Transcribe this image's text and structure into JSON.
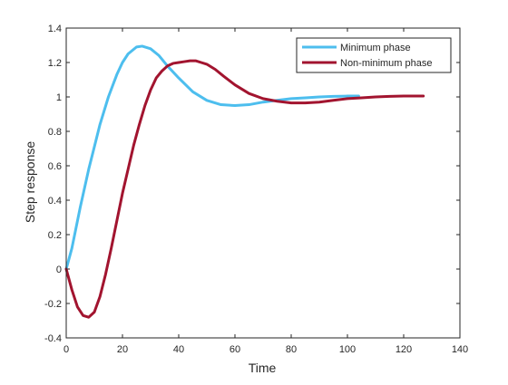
{
  "chart_data": {
    "type": "line",
    "title": "",
    "xlabel": "Time",
    "ylabel": "Step response",
    "xlim": [
      0,
      140
    ],
    "ylim": [
      -0.4,
      1.4
    ],
    "x_ticks": [
      0,
      20,
      40,
      60,
      80,
      100,
      120,
      140
    ],
    "y_ticks": [
      -0.4,
      -0.2,
      0,
      0.2,
      0.4,
      0.6,
      0.8,
      1,
      1.2,
      1.4
    ],
    "x_tick_labels": [
      "0",
      "20",
      "40",
      "60",
      "80",
      "100",
      "120",
      "140"
    ],
    "y_tick_labels": [
      "-0.4",
      "-0.2",
      "0",
      "0.2",
      "0.4",
      "0.6",
      "0.8",
      "1",
      "1.2",
      "1.4"
    ],
    "grid": false,
    "legend_position": "top-right",
    "series": [
      {
        "name": "Minimum phase",
        "color": "#4DBEEE",
        "x": [
          0,
          2,
          5,
          8,
          10,
          12,
          15,
          18,
          20,
          22,
          25,
          27,
          30,
          33,
          36,
          40,
          45,
          50,
          55,
          60,
          65,
          70,
          75,
          80,
          85,
          90,
          95,
          100,
          104
        ],
        "y": [
          0,
          0.12,
          0.36,
          0.58,
          0.71,
          0.84,
          1.0,
          1.13,
          1.2,
          1.25,
          1.29,
          1.295,
          1.28,
          1.24,
          1.18,
          1.11,
          1.03,
          0.98,
          0.955,
          0.95,
          0.955,
          0.97,
          0.98,
          0.99,
          0.995,
          1.0,
          1.003,
          1.005,
          1.005
        ]
      },
      {
        "name": "Non-minimum phase",
        "color": "#A2142F",
        "x": [
          0,
          2,
          4,
          6,
          8,
          10,
          12,
          14,
          16,
          18,
          20,
          22,
          24,
          26,
          28,
          30,
          32,
          34,
          36,
          38,
          40,
          42,
          44,
          46,
          48,
          50,
          53,
          56,
          60,
          65,
          70,
          75,
          80,
          85,
          90,
          95,
          100,
          105,
          110,
          115,
          120,
          127
        ],
        "y": [
          0,
          -0.12,
          -0.22,
          -0.27,
          -0.28,
          -0.25,
          -0.16,
          -0.03,
          0.12,
          0.28,
          0.44,
          0.58,
          0.72,
          0.84,
          0.95,
          1.04,
          1.11,
          1.15,
          1.18,
          1.195,
          1.2,
          1.205,
          1.21,
          1.21,
          1.2,
          1.19,
          1.16,
          1.12,
          1.07,
          1.02,
          0.99,
          0.975,
          0.965,
          0.965,
          0.97,
          0.98,
          0.99,
          0.995,
          1.0,
          1.003,
          1.005,
          1.005
        ]
      }
    ]
  }
}
